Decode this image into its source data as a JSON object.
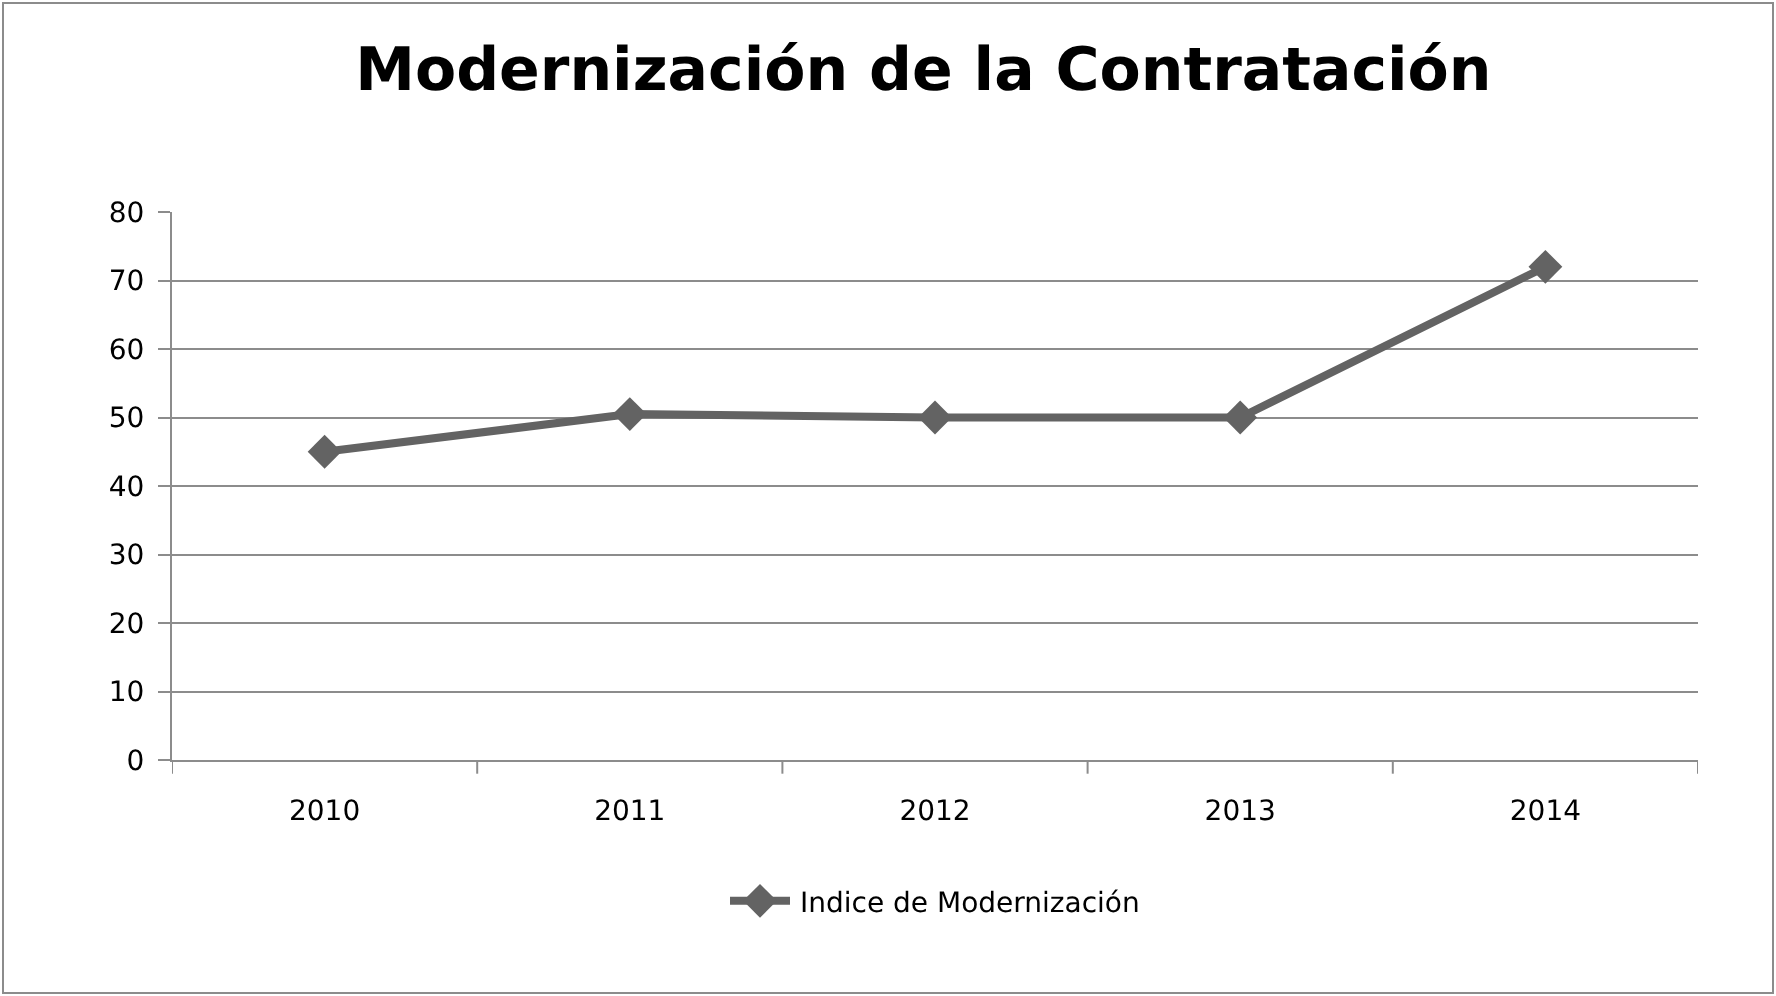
{
  "chart_data": {
    "type": "line",
    "title": "Modernización de la Contratación",
    "categories": [
      "2010",
      "2011",
      "2012",
      "2013",
      "2014"
    ],
    "series": [
      {
        "name": "Indice de Modernización",
        "color": "#636363",
        "values": [
          45,
          50.5,
          50,
          50,
          72
        ]
      }
    ],
    "ylim": [
      0,
      80
    ],
    "yticks": [
      0,
      10,
      20,
      30,
      40,
      50,
      60,
      70,
      80
    ],
    "grid": "y",
    "legend": "bottom",
    "marker": "diamond",
    "line_style": "solid"
  }
}
